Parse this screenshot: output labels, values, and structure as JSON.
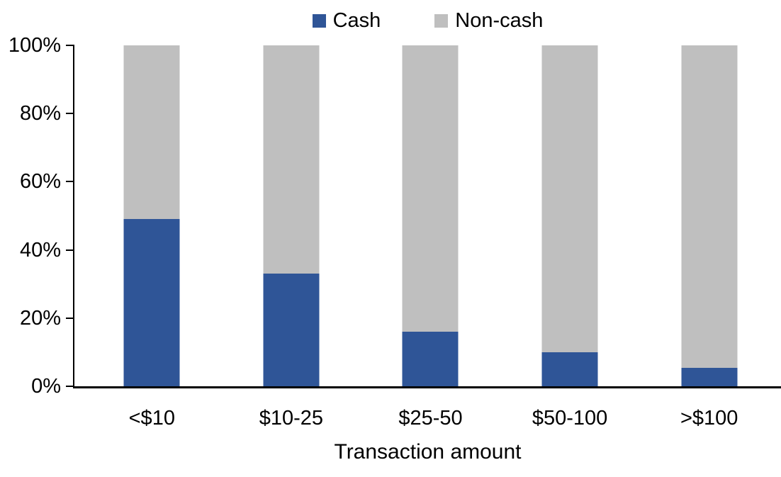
{
  "chart_data": {
    "type": "bar",
    "stacked": true,
    "title": "",
    "xlabel": "Transaction amount",
    "ylabel": "",
    "categories": [
      "<$10",
      "$10-25",
      "$25-50",
      "$50-100",
      ">$100"
    ],
    "series": [
      {
        "name": "Cash",
        "color": "#2F5597",
        "values": [
          49,
          33,
          16,
          10,
          5.5
        ]
      },
      {
        "name": "Non-cash",
        "color": "#BFBFBF",
        "values": [
          51,
          67,
          84,
          90,
          94.5
        ]
      }
    ],
    "ylim": [
      0,
      100
    ],
    "yticks": [
      0,
      20,
      40,
      60,
      80,
      100
    ],
    "ytick_labels": [
      "0%",
      "20%",
      "40%",
      "60%",
      "80%",
      "100%"
    ],
    "grid": false,
    "legend_position": "top-center",
    "axis_color": "#000000",
    "background_color": "#FFFFFF"
  }
}
